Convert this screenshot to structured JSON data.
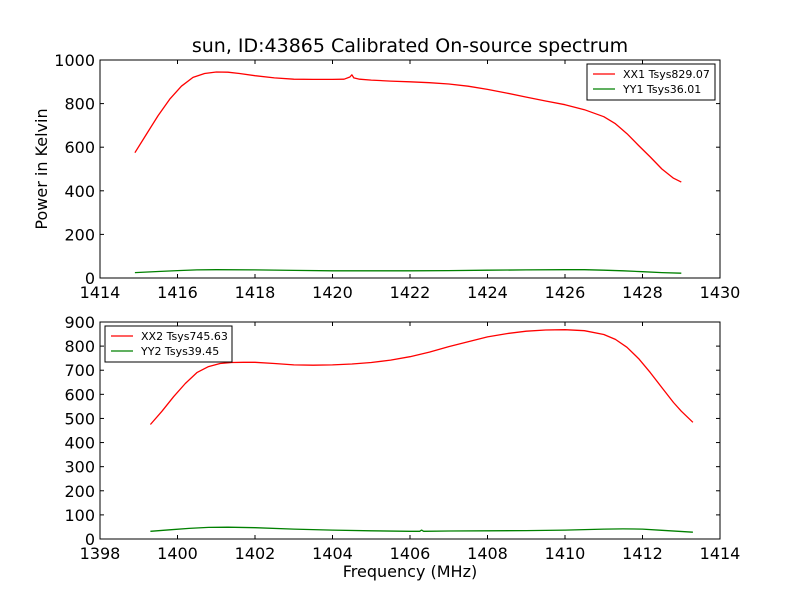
{
  "title": "sun, ID:43865 Calibrated On-source spectrum",
  "chart_data": [
    {
      "type": "line",
      "ylabel": "Power in Kelvin",
      "xlabel": "",
      "xlim": [
        1414,
        1430
      ],
      "ylim": [
        0,
        1000
      ],
      "xticks": [
        1414,
        1416,
        1418,
        1420,
        1422,
        1424,
        1426,
        1428,
        1430
      ],
      "yticks": [
        0,
        200,
        400,
        600,
        800,
        1000
      ],
      "legend_position": "top-right",
      "series": [
        {
          "name": "XX1 Tsys829.07",
          "color": "#ff0000",
          "x": [
            1414.9,
            1415.2,
            1415.5,
            1415.8,
            1416.1,
            1416.4,
            1416.7,
            1417.0,
            1417.3,
            1417.6,
            1418.0,
            1418.5,
            1419.0,
            1419.5,
            1420.0,
            1420.3,
            1420.45,
            1420.5,
            1420.55,
            1420.7,
            1421.0,
            1421.5,
            1422.0,
            1422.5,
            1423.0,
            1423.5,
            1424.0,
            1424.5,
            1425.0,
            1425.5,
            1426.0,
            1426.5,
            1427.0,
            1427.3,
            1427.6,
            1427.9,
            1428.2,
            1428.5,
            1428.8,
            1429.0
          ],
          "y": [
            575,
            660,
            745,
            820,
            880,
            920,
            938,
            945,
            944,
            938,
            928,
            918,
            912,
            911,
            911,
            912,
            922,
            932,
            918,
            912,
            908,
            903,
            900,
            896,
            890,
            880,
            865,
            848,
            830,
            812,
            795,
            772,
            740,
            708,
            662,
            608,
            555,
            500,
            458,
            440
          ]
        },
        {
          "name": "YY1 Tsys36.01",
          "color": "#008000",
          "x": [
            1414.9,
            1415.5,
            1416.0,
            1416.5,
            1417.0,
            1418.0,
            1419.0,
            1420.0,
            1421.0,
            1422.0,
            1423.0,
            1424.0,
            1425.0,
            1426.0,
            1426.5,
            1427.0,
            1427.5,
            1428.0,
            1428.5,
            1429.0
          ],
          "y": [
            25,
            30,
            34,
            37,
            38,
            37,
            35,
            33,
            33,
            33,
            34,
            36,
            37,
            38,
            38,
            36,
            33,
            29,
            25,
            22
          ]
        }
      ]
    },
    {
      "type": "line",
      "ylabel": "",
      "xlabel": "Frequency (MHz)",
      "xlim": [
        1398,
        1414
      ],
      "ylim": [
        0,
        900
      ],
      "xticks": [
        1398,
        1400,
        1402,
        1404,
        1406,
        1408,
        1410,
        1412,
        1414
      ],
      "yticks": [
        0,
        100,
        200,
        300,
        400,
        500,
        600,
        700,
        800,
        900
      ],
      "legend_position": "top-left",
      "series": [
        {
          "name": "XX2 Tsys745.63",
          "color": "#ff0000",
          "x": [
            1399.3,
            1399.6,
            1399.9,
            1400.2,
            1400.5,
            1400.8,
            1401.1,
            1401.4,
            1401.7,
            1402.0,
            1402.5,
            1403.0,
            1403.5,
            1404.0,
            1404.5,
            1405.0,
            1405.5,
            1406.0,
            1406.5,
            1407.0,
            1407.5,
            1408.0,
            1408.5,
            1409.0,
            1409.5,
            1410.0,
            1410.5,
            1411.0,
            1411.3,
            1411.6,
            1411.9,
            1412.2,
            1412.5,
            1412.8,
            1413.0,
            1413.3
          ],
          "y": [
            475,
            530,
            590,
            645,
            690,
            715,
            728,
            732,
            733,
            733,
            728,
            722,
            721,
            722,
            726,
            732,
            742,
            756,
            775,
            798,
            818,
            838,
            852,
            862,
            867,
            868,
            864,
            848,
            828,
            795,
            748,
            690,
            628,
            566,
            530,
            484
          ]
        },
        {
          "name": "YY2 Tsys39.45",
          "color": "#008000",
          "x": [
            1399.3,
            1399.8,
            1400.3,
            1400.8,
            1401.3,
            1402.0,
            1403.0,
            1404.0,
            1405.0,
            1406.0,
            1406.25,
            1406.3,
            1406.35,
            1407.0,
            1408.0,
            1409.0,
            1410.0,
            1411.0,
            1411.5,
            1412.0,
            1412.5,
            1413.3
          ],
          "y": [
            32,
            38,
            44,
            48,
            49,
            47,
            41,
            37,
            34,
            32,
            32,
            37,
            32,
            33,
            34,
            35,
            37,
            41,
            42,
            41,
            36,
            28
          ]
        }
      ]
    }
  ]
}
